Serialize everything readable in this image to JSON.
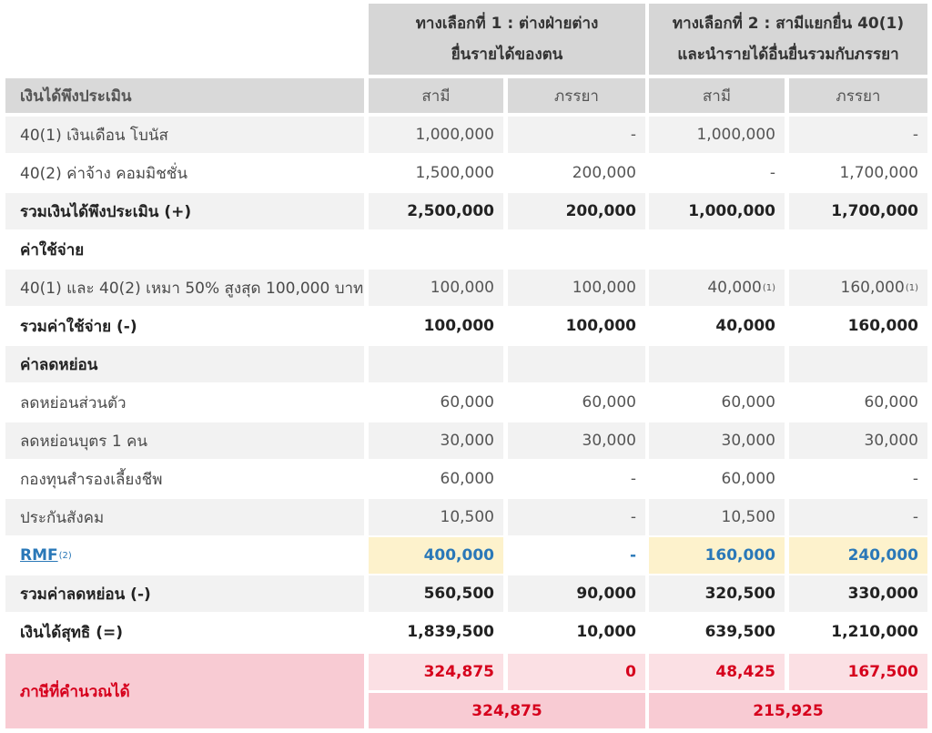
{
  "header": {
    "option1": "ทางเลือกที่ 1 : ต่างฝ่ายต่างยื่นรายได้ของตน",
    "option2": "ทางเลือกที่ 2 : สามีแยกยื่น 40(1) และนำรายได้อื่นยื่นรวมกับภรรยา",
    "row_label": "เงินได้พึงประเมิน",
    "husband": "สามี",
    "wife": "ภรรยา"
  },
  "rows": [
    {
      "label": "40(1) เงินเดือน โบนัส",
      "v": [
        "1,000,000",
        "-",
        "1,000,000",
        "-"
      ]
    },
    {
      "label": "40(2) ค่าจ้าง คอมมิชชั่น",
      "v": [
        "1,500,000",
        "200,000",
        "-",
        "1,700,000"
      ]
    },
    {
      "label": "รวมเงินได้พึงประเมิน (+)",
      "v": [
        "2,500,000",
        "200,000",
        "1,000,000",
        "1,700,000"
      ]
    },
    {
      "label": "ค่าใช้จ่าย",
      "v": [
        "",
        "",
        "",
        ""
      ]
    },
    {
      "label": "40(1) และ 40(2) เหมา 50% สูงสุด 100,000 บาท",
      "v": [
        "100,000",
        "100,000",
        "40,000",
        "160,000"
      ],
      "sup": [
        "",
        "",
        "(1)",
        "(1)"
      ]
    },
    {
      "label": "รวมค่าใช้จ่าย (-)",
      "v": [
        "100,000",
        "100,000",
        "40,000",
        "160,000"
      ]
    },
    {
      "label": "ค่าลดหย่อน",
      "v": [
        "",
        "",
        "",
        ""
      ]
    },
    {
      "label": "ลดหย่อนส่วนตัว",
      "v": [
        "60,000",
        "60,000",
        "60,000",
        "60,000"
      ]
    },
    {
      "label": "ลดหย่อนบุตร 1 คน",
      "v": [
        "30,000",
        "30,000",
        "30,000",
        "30,000"
      ]
    },
    {
      "label": "กองทุนสำรองเลี้ยงชีพ",
      "v": [
        "60,000",
        "-",
        "60,000",
        "-"
      ]
    },
    {
      "label": "ประกันสังคม",
      "v": [
        "10,500",
        "-",
        "10,500",
        "-"
      ]
    },
    {
      "label": "RMF",
      "sup_label": "(2)",
      "v": [
        "400,000",
        "-",
        "160,000",
        "240,000"
      ]
    },
    {
      "label": "รวมค่าลดหย่อน (-)",
      "v": [
        "560,500",
        "90,000",
        "320,500",
        "330,000"
      ]
    },
    {
      "label": "เงินได้สุทธิ (=)",
      "v": [
        "1,839,500",
        "10,000",
        "639,500",
        "1,210,000"
      ]
    }
  ],
  "tax": {
    "label": "ภาษีที่คำนวณได้",
    "v": [
      "324,875",
      "0",
      "48,425",
      "167,500"
    ],
    "total1": "324,875",
    "total2": "215,925"
  }
}
